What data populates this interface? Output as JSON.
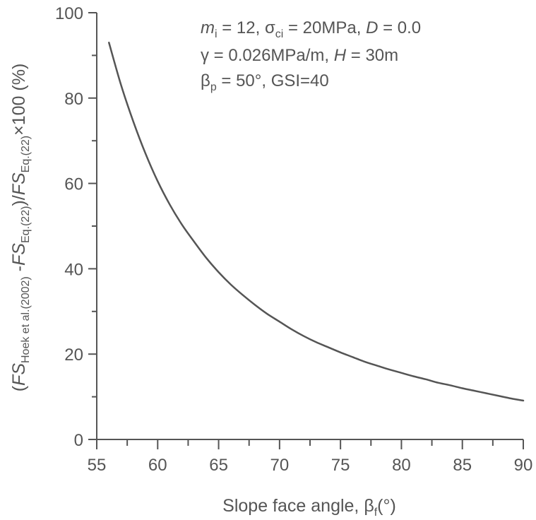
{
  "chart_data": {
    "type": "line",
    "title": "",
    "xlabel": "Slope face angle, β_f(°)",
    "xlabel_parts": {
      "main": "Slope face angle, β",
      "sub": "f",
      "tail": "(°)"
    },
    "ylabel": "(FS_Hoek et al.(2002) -FS_Eq.(22))/FS_Eq.(22)×100 (%)",
    "ylabel_parts": {
      "p1": "(",
      "fs1": "FS",
      "sub1": "Hoek et al.(2002)",
      "p2": " -",
      "fs2": "FS",
      "sub2": "Eq.(22)",
      "p3": ")/",
      "fs3": "FS",
      "sub3": "Eq.(22)",
      "p4": "×100 (%)"
    },
    "xlim": [
      55,
      90
    ],
    "ylim": [
      0,
      100
    ],
    "xticks": [
      55,
      60,
      65,
      70,
      75,
      80,
      85,
      90
    ],
    "yticks": [
      0,
      20,
      40,
      60,
      80,
      100
    ],
    "grid": false,
    "annotations": {
      "line1": {
        "mi": "m",
        "mi_sub": "i",
        "rest1": " = 12,  σ",
        "sci_sub": "ci",
        "rest2": " = 20MPa, ",
        "D": "D",
        "rest3": " = 0.0"
      },
      "line2": {
        "a": "γ = 0.026MPa/m, ",
        "H": "H",
        "b": " = 30m"
      },
      "line3": {
        "a": "β",
        "p_sub": "p",
        "b": " = 50°, GSI=40"
      }
    },
    "series": [
      {
        "color": "#555555",
        "x": [
          56,
          57,
          58,
          59,
          60,
          61,
          62,
          63,
          64,
          65,
          66,
          67,
          68,
          69,
          70,
          71,
          72,
          73,
          74,
          75,
          76,
          77,
          78,
          79,
          80,
          81,
          82,
          83,
          84,
          85,
          86,
          87,
          88,
          89,
          90
        ],
        "y": [
          93,
          83,
          74.5,
          67,
          60.5,
          55,
          50.3,
          46.3,
          42.5,
          39.2,
          36.3,
          33.8,
          31.5,
          29.4,
          27.6,
          25.8,
          24.2,
          22.8,
          21.6,
          20.4,
          19.3,
          18.2,
          17.3,
          16.4,
          15.6,
          14.8,
          14.1,
          13.3,
          12.7,
          12,
          11.4,
          10.8,
          10.2,
          9.6,
          9.1
        ]
      }
    ]
  }
}
